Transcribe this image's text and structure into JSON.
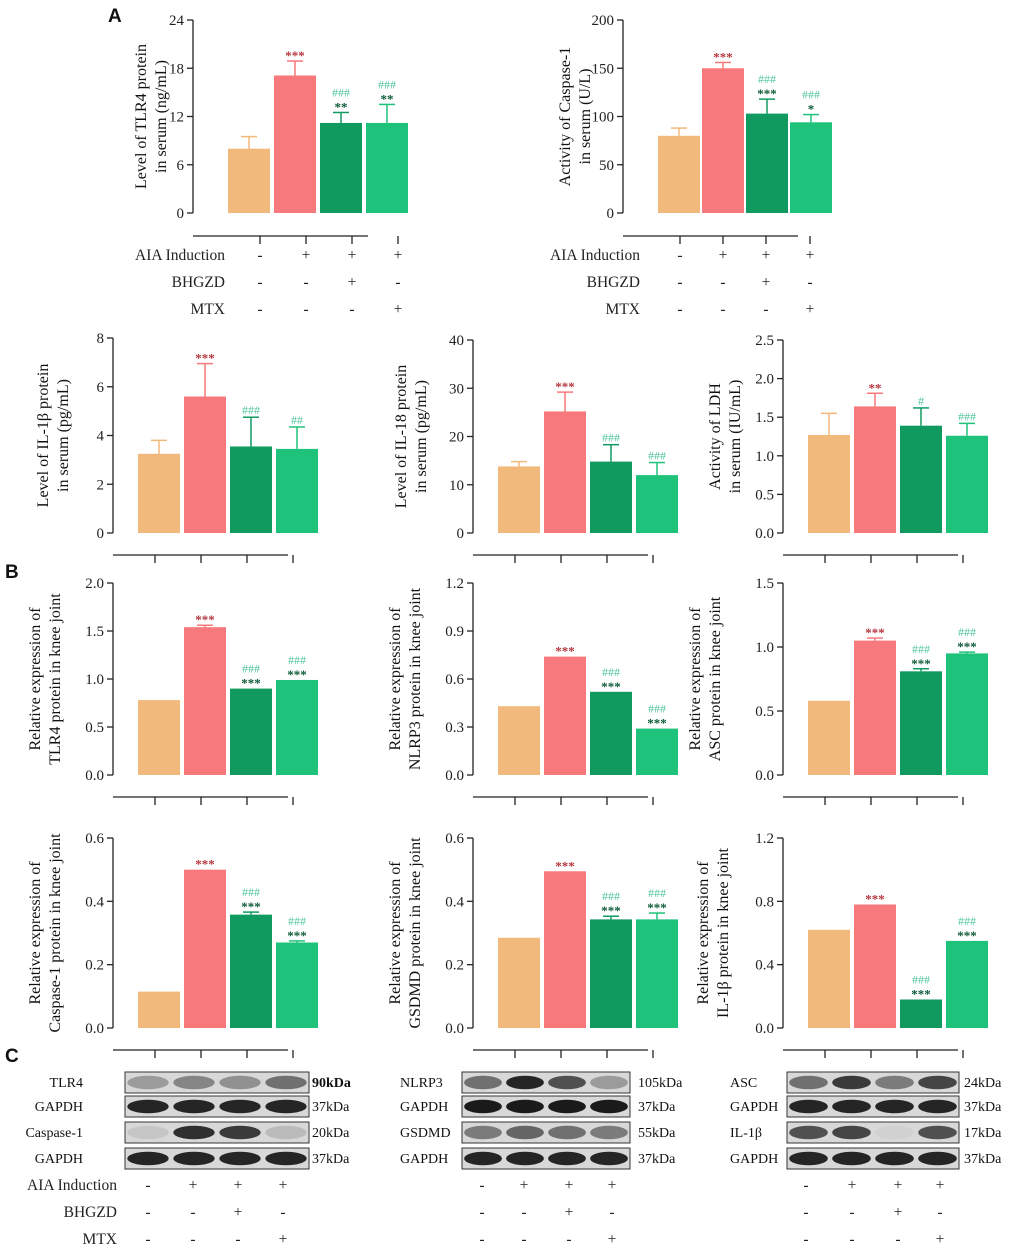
{
  "colors": {
    "control": "#F2B97C",
    "model": "#F8797C",
    "bhgzd": "#119A60",
    "mtx": "#1EC27A",
    "star_model": "#B5373E",
    "star_treat": "#0C5A36",
    "hash": "#4FC59A"
  },
  "panel_labels": {
    "a": "A",
    "b": "B",
    "c": "C"
  },
  "condition_table": {
    "rows": [
      {
        "label": "AIA Induction",
        "values": [
          "-",
          "+",
          "+",
          "+"
        ]
      },
      {
        "label": "BHGZD",
        "values": [
          "-",
          "-",
          "+",
          "-"
        ]
      },
      {
        "label": "MTX",
        "values": [
          "-",
          "-",
          "-",
          "+"
        ]
      }
    ]
  },
  "chart_data": [
    {
      "type": "bar",
      "id": "tlr4-serum",
      "ylabel": [
        "Level of TLR4 protein",
        "in serum (ng/mL)"
      ],
      "ylim": [
        0,
        24
      ],
      "yticks": [
        "0",
        "6",
        "12",
        "18",
        "24"
      ],
      "values": [
        8.0,
        17.1,
        11.2,
        11.2
      ],
      "errors": [
        1.5,
        1.8,
        1.3,
        2.3
      ],
      "stars": [
        "",
        "***",
        "**",
        "**"
      ],
      "hashes": [
        "",
        "",
        "###",
        "###"
      ]
    },
    {
      "type": "bar",
      "id": "caspase1-serum",
      "ylabel": [
        "Activity of Caspase-1",
        "in serum (U/L)"
      ],
      "ylim": [
        0,
        200
      ],
      "yticks": [
        "0",
        "50",
        "100",
        "150",
        "200"
      ],
      "values": [
        80,
        150,
        103,
        94
      ],
      "errors": [
        8,
        6,
        15,
        8
      ],
      "stars": [
        "",
        "***",
        "***",
        "*"
      ],
      "hashes": [
        "",
        "",
        "###",
        "###"
      ]
    },
    {
      "type": "bar",
      "id": "il1b-serum",
      "ylabel": [
        "Level of IL-1β protein",
        "in serum (pg/mL)"
      ],
      "ylim": [
        0,
        8
      ],
      "yticks": [
        "0",
        "2",
        "4",
        "6",
        "8"
      ],
      "values": [
        3.25,
        5.6,
        3.55,
        3.45
      ],
      "errors": [
        0.55,
        1.35,
        1.2,
        0.9
      ],
      "stars": [
        "",
        "***",
        "",
        ""
      ],
      "hashes": [
        "",
        "",
        "###",
        "##"
      ]
    },
    {
      "type": "bar",
      "id": "il18-serum",
      "ylabel": [
        "Level of IL-18 protein",
        "in serum (pg/mL)"
      ],
      "ylim": [
        0,
        40
      ],
      "yticks": [
        "0",
        "10",
        "20",
        "30",
        "40"
      ],
      "values": [
        13.8,
        25.2,
        14.8,
        12.0
      ],
      "errors": [
        1.0,
        4.0,
        3.5,
        2.6
      ],
      "stars": [
        "",
        "***",
        "",
        ""
      ],
      "hashes": [
        "",
        "",
        "###",
        "###"
      ]
    },
    {
      "type": "bar",
      "id": "ldh-serum",
      "ylabel": [
        "Activity of LDH",
        "in serum (IU/mL)"
      ],
      "ylim": [
        0,
        2.5
      ],
      "yticks": [
        "0.0",
        "0.5",
        "1.0",
        "1.5",
        "2.0",
        "2.5"
      ],
      "values": [
        1.27,
        1.64,
        1.39,
        1.26
      ],
      "errors": [
        0.28,
        0.17,
        0.23,
        0.16
      ],
      "stars": [
        "",
        "**",
        "",
        ""
      ],
      "hashes": [
        "",
        "",
        "#",
        "###"
      ]
    },
    {
      "type": "bar",
      "id": "tlr4-knee",
      "ylabel": [
        "Relative expression of",
        "TLR4 protein in knee joint"
      ],
      "ylim": [
        0,
        2.0
      ],
      "yticks": [
        "0.0",
        "0.5",
        "1.0",
        "1.5",
        "2.0"
      ],
      "values": [
        0.78,
        1.54,
        0.9,
        0.99
      ],
      "errors": [
        0.0,
        0.02,
        0.0,
        0.0
      ],
      "stars": [
        "",
        "***",
        "***",
        "***"
      ],
      "hashes": [
        "",
        "",
        "###",
        "###"
      ]
    },
    {
      "type": "bar",
      "id": "nlrp3-knee",
      "ylabel": [
        "Relative expression of",
        "NLRP3 protein in knee joint"
      ],
      "ylim": [
        0,
        1.2
      ],
      "yticks": [
        "0.0",
        "0.3",
        "0.6",
        "0.9",
        "1.2"
      ],
      "values": [
        0.43,
        0.74,
        0.52,
        0.29
      ],
      "errors": [
        0.0,
        0.0,
        0.0,
        0.0
      ],
      "stars": [
        "",
        "***",
        "***",
        "***"
      ],
      "hashes": [
        "",
        "",
        "###",
        "###"
      ]
    },
    {
      "type": "bar",
      "id": "asc-knee",
      "ylabel": [
        "Relative expression of",
        "ASC protein in knee joint"
      ],
      "ylim": [
        0,
        1.5
      ],
      "yticks": [
        "0.0",
        "0.5",
        "1.0",
        "1.5"
      ],
      "values": [
        0.58,
        1.05,
        0.81,
        0.95
      ],
      "errors": [
        0.0,
        0.02,
        0.02,
        0.01
      ],
      "stars": [
        "",
        "***",
        "***",
        "***"
      ],
      "hashes": [
        "",
        "",
        "###",
        "###"
      ]
    },
    {
      "type": "bar",
      "id": "caspase1-knee",
      "ylabel": [
        "Relative expression of",
        "Caspase-1 protein in knee joint"
      ],
      "ylim": [
        0,
        0.6
      ],
      "yticks": [
        "0.0",
        "0.2",
        "0.4",
        "0.6"
      ],
      "values": [
        0.115,
        0.5,
        0.358,
        0.27
      ],
      "errors": [
        0.0,
        0.0,
        0.008,
        0.005
      ],
      "stars": [
        "",
        "***",
        "***",
        "***"
      ],
      "hashes": [
        "",
        "",
        "###",
        "###"
      ]
    },
    {
      "type": "bar",
      "id": "gsdmd-knee",
      "ylabel": [
        "Relative expression of",
        "GSDMD protein in knee joint"
      ],
      "ylim": [
        0,
        0.6
      ],
      "yticks": [
        "0.0",
        "0.2",
        "0.4",
        "0.6"
      ],
      "values": [
        0.285,
        0.495,
        0.343,
        0.343
      ],
      "errors": [
        0.0,
        0.0,
        0.01,
        0.02
      ],
      "stars": [
        "",
        "***",
        "***",
        "***"
      ],
      "hashes": [
        "",
        "",
        "###",
        "###"
      ]
    },
    {
      "type": "bar",
      "id": "il1b-knee",
      "ylabel": [
        "Relative expression of",
        "IL-1β protein in knee joint"
      ],
      "ylim": [
        0,
        1.2
      ],
      "yticks": [
        "0.0",
        "0.4",
        "0.8",
        "1.2"
      ],
      "values": [
        0.62,
        0.78,
        0.18,
        0.55
      ],
      "errors": [
        0.0,
        0.0,
        0.0,
        0.0
      ],
      "stars": [
        "",
        "***",
        "***",
        "***"
      ],
      "hashes": [
        "",
        "",
        "###",
        "###"
      ]
    }
  ],
  "blots": [
    [
      {
        "name": "TLR4",
        "kda": "90kDa",
        "kda_bold": true,
        "intensities": [
          0.35,
          0.45,
          0.4,
          0.55
        ]
      },
      {
        "name": "GAPDH",
        "kda": "37kDa",
        "intensities": [
          0.9,
          0.9,
          0.9,
          0.9
        ]
      },
      {
        "name": "Caspase-1",
        "kda": "20kDa",
        "intensities": [
          0.15,
          0.85,
          0.8,
          0.2
        ]
      },
      {
        "name": "GAPDH",
        "kda": "37kDa",
        "intensities": [
          0.9,
          0.9,
          0.9,
          0.9
        ]
      }
    ],
    [
      {
        "name": "NLRP3",
        "kda": "105kDa",
        "intensities": [
          0.55,
          0.9,
          0.7,
          0.35
        ]
      },
      {
        "name": "GAPDH",
        "kda": "37kDa",
        "intensities": [
          0.95,
          0.95,
          0.95,
          0.95
        ]
      },
      {
        "name": "GSDMD",
        "kda": "55kDa",
        "intensities": [
          0.5,
          0.6,
          0.55,
          0.5
        ]
      },
      {
        "name": "GAPDH",
        "kda": "37kDa",
        "intensities": [
          0.9,
          0.9,
          0.9,
          0.9
        ]
      }
    ],
    [
      {
        "name": "ASC",
        "kda": "24kDa",
        "intensities": [
          0.55,
          0.8,
          0.5,
          0.75
        ]
      },
      {
        "name": "GAPDH",
        "kda": "37kDa",
        "intensities": [
          0.9,
          0.9,
          0.9,
          0.9
        ]
      },
      {
        "name": "IL-1β",
        "kda": "17kDa",
        "intensities": [
          0.7,
          0.75,
          0.1,
          0.7
        ]
      },
      {
        "name": "GAPDH",
        "kda": "37kDa",
        "intensities": [
          0.9,
          0.9,
          0.9,
          0.9
        ]
      }
    ]
  ]
}
